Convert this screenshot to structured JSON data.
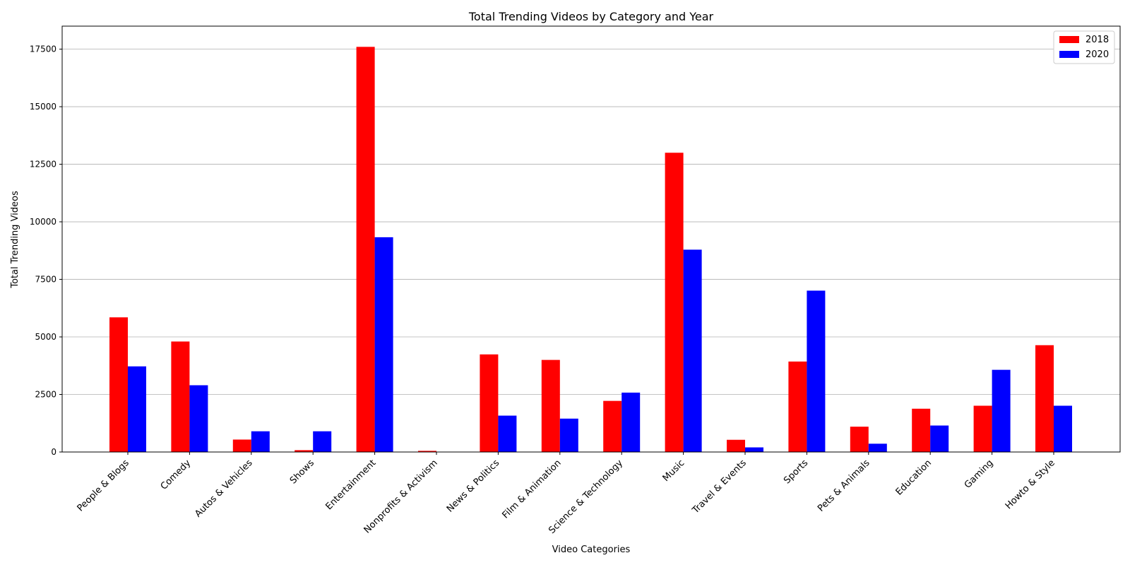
{
  "chart_data": {
    "type": "bar",
    "title": "Total Trending Videos by Category and Year",
    "xlabel": "Video Categories",
    "ylabel": "Total Trending Videos",
    "categories": [
      "People & Blogs",
      "Comedy",
      "Autos & Vehicles",
      "Shows",
      "Entertainment",
      "Nonprofits & Activism",
      "News & Politics",
      "Film & Animation",
      "Science & Technology",
      "Music",
      "Travel & Events",
      "Sports",
      "Pets & Animals",
      "Education",
      "Gaming",
      "Howto & Style"
    ],
    "series": [
      {
        "name": "2018",
        "color": "#ff0000",
        "values": [
          5850,
          4800,
          540,
          80,
          17600,
          50,
          4240,
          4000,
          2220,
          13000,
          530,
          3930,
          1100,
          1880,
          2010,
          4640
        ]
      },
      {
        "name": "2020",
        "color": "#0000ff",
        "values": [
          3720,
          2900,
          900,
          900,
          9330,
          10,
          1580,
          1450,
          2580,
          8790,
          200,
          7010,
          360,
          1150,
          3570,
          2010
        ]
      }
    ],
    "ylim": [
      0,
      18500
    ],
    "yticks": [
      0,
      2500,
      5000,
      7500,
      10000,
      12500,
      15000,
      17500
    ],
    "grid": "y-axis major",
    "legend_position": "top-right"
  }
}
